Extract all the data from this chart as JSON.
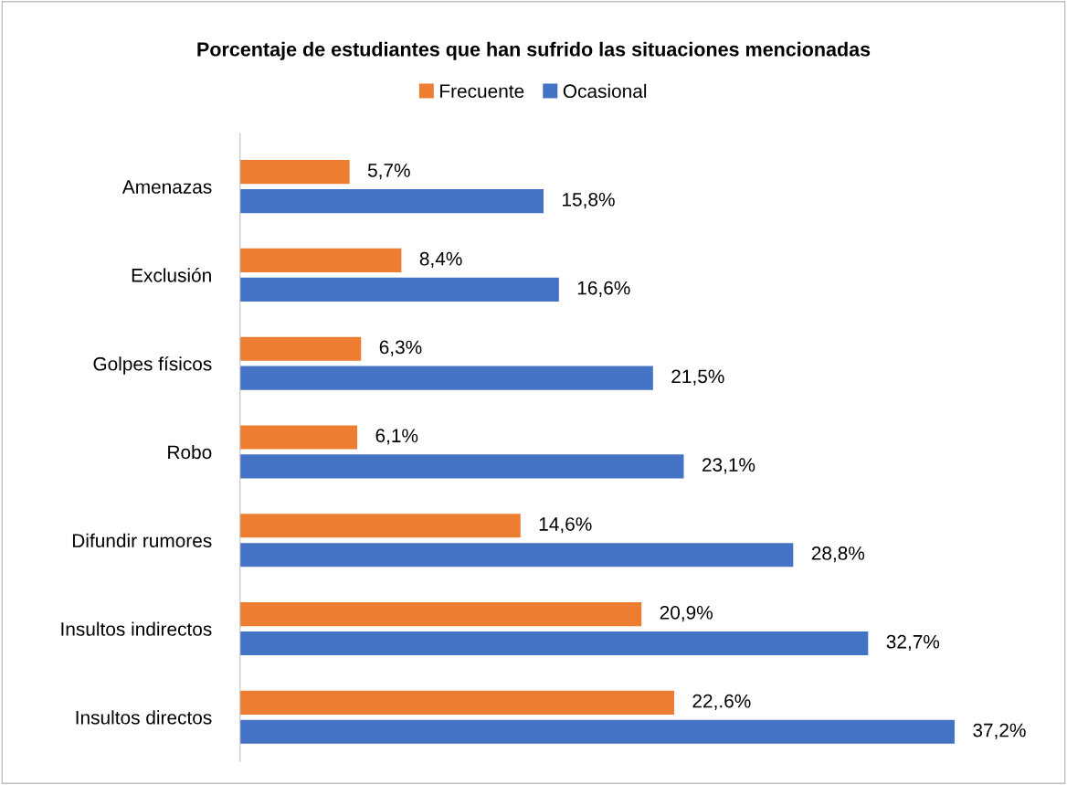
{
  "chart_data": {
    "type": "bar",
    "orientation": "horizontal",
    "title": "Porcentaje de estudiantes que han sufrido las situaciones mencionadas",
    "categories": [
      "Amenazas",
      "Exclusión",
      "Golpes físicos",
      "Robo",
      "Difundir rumores",
      "Insultos indirectos",
      "Insultos directos"
    ],
    "series": [
      {
        "name": "Frecuente",
        "color": "#ed7d31",
        "values": [
          5.7,
          8.4,
          6.3,
          6.1,
          14.6,
          20.9,
          22.6
        ],
        "value_labels": [
          "5,7%",
          "8,4%",
          "6,3%",
          "6,1%",
          "14,6%",
          "20,9%",
          "22,.6%"
        ]
      },
      {
        "name": "Ocasional",
        "color": "#4472c4",
        "values": [
          15.8,
          16.6,
          21.5,
          23.1,
          28.8,
          32.7,
          37.2
        ],
        "value_labels": [
          "15,8%",
          "16,6%",
          "21,5%",
          "23,1%",
          "28,8%",
          "32,7%",
          "37,2%"
        ]
      }
    ],
    "tick_labels": "y",
    "grid": false,
    "legend": "top"
  }
}
